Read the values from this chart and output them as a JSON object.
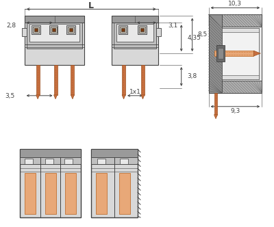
{
  "bg_color": "#ffffff",
  "gray_body": "#d8d8d8",
  "gray_dark": "#9a9a9a",
  "gray_med": "#c0c0c0",
  "gray_inner": "#e8e8e8",
  "gray_stripe": "#b8b8b8",
  "hatch_color": "#787878",
  "copper": "#c87040",
  "copper_light": "#e8a878",
  "copper_mid": "#d4905a",
  "brown": "#7a3a10",
  "line_color": "#404040",
  "dim_color": "#404040",
  "white": "#f5f5f5",
  "dim_2_8": "2,8",
  "dim_3_1": "3,1",
  "dim_L": "L",
  "dim_3_5": "3,5",
  "dim_1x1": "1x1",
  "dim_4_35": "4,35",
  "dim_3_8": "3,8",
  "dim_8_5": "8,5",
  "dim_10_3": "10,3",
  "dim_9_3": "9,3"
}
